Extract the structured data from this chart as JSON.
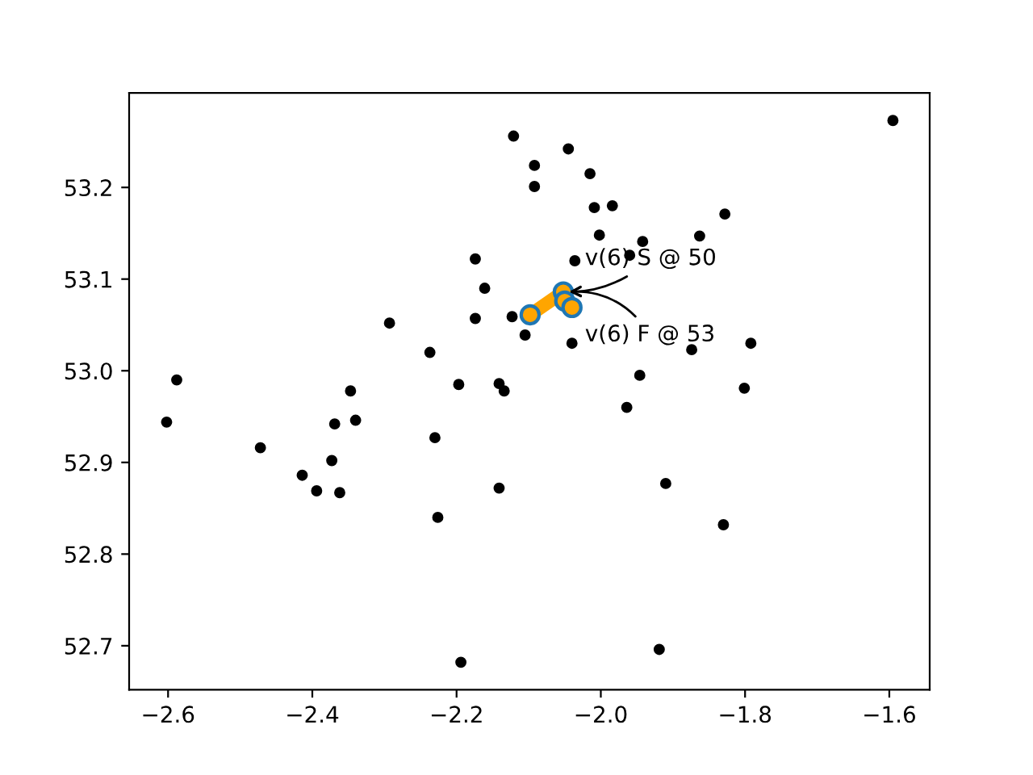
{
  "chart_data": {
    "type": "scatter",
    "xlim": [
      -2.654,
      -1.544
    ],
    "ylim": [
      52.652,
      53.303
    ],
    "xticks": [
      -2.6,
      -2.4,
      -2.2,
      {
        "value": -2.0,
        "label": "−2.0"
      },
      -1.8,
      -1.6
    ],
    "yticks": [
      52.7,
      52.8,
      52.9,
      {
        "value": 53.0,
        "label": "53.0"
      },
      53.1,
      53.2
    ],
    "grid": false,
    "legend": false,
    "series": [
      {
        "color": "#000000",
        "marker": "circle",
        "x": [
          -2.121,
          -2.174,
          -2.161,
          -2.293,
          -2.174,
          -2.123,
          -2.105,
          -2.237,
          -2.588,
          -2.347,
          -2.197,
          -2.141,
          -2.134,
          -2.602,
          -2.369,
          -2.34,
          -2.472,
          -2.23,
          -2.373,
          -2.414,
          -2.394,
          -2.362,
          -2.141,
          -2.226,
          -2.194,
          -2.092,
          -2.045,
          -2.092,
          -2.015,
          -2.009,
          -1.984,
          -1.595,
          -1.828,
          -2.002,
          -1.942,
          -1.863,
          -2.036,
          -1.96,
          -2.04,
          -1.874,
          -1.792,
          -1.946,
          -1.801,
          -1.964,
          -1.91,
          -1.83,
          -1.919
        ],
        "values": [
          53.256,
          53.122,
          53.09,
          53.052,
          53.057,
          53.059,
          53.039,
          53.02,
          52.99,
          52.978,
          52.985,
          52.986,
          52.978,
          52.944,
          52.942,
          52.946,
          52.916,
          52.927,
          52.902,
          52.886,
          52.869,
          52.867,
          52.872,
          52.84,
          52.682,
          53.224,
          53.242,
          53.201,
          53.215,
          53.178,
          53.18,
          53.273,
          53.171,
          53.148,
          53.141,
          53.147,
          53.12,
          53.126,
          53.03,
          53.023,
          53.03,
          52.995,
          52.981,
          52.96,
          52.877,
          52.832,
          52.696
        ]
      },
      {
        "type": "line",
        "color": "#ffa500",
        "marker": "circle",
        "x": [
          -2.098,
          -2.052,
          -2.05,
          -2.04
        ],
        "values": [
          53.061,
          53.086,
          53.076,
          53.069
        ]
      }
    ],
    "annotations": [
      {
        "text": "v(6) S @ 50",
        "x": -2.05,
        "y": 53.086
      },
      {
        "text": "v(6) F @ 53",
        "x": -2.05,
        "y": 53.086
      }
    ]
  }
}
